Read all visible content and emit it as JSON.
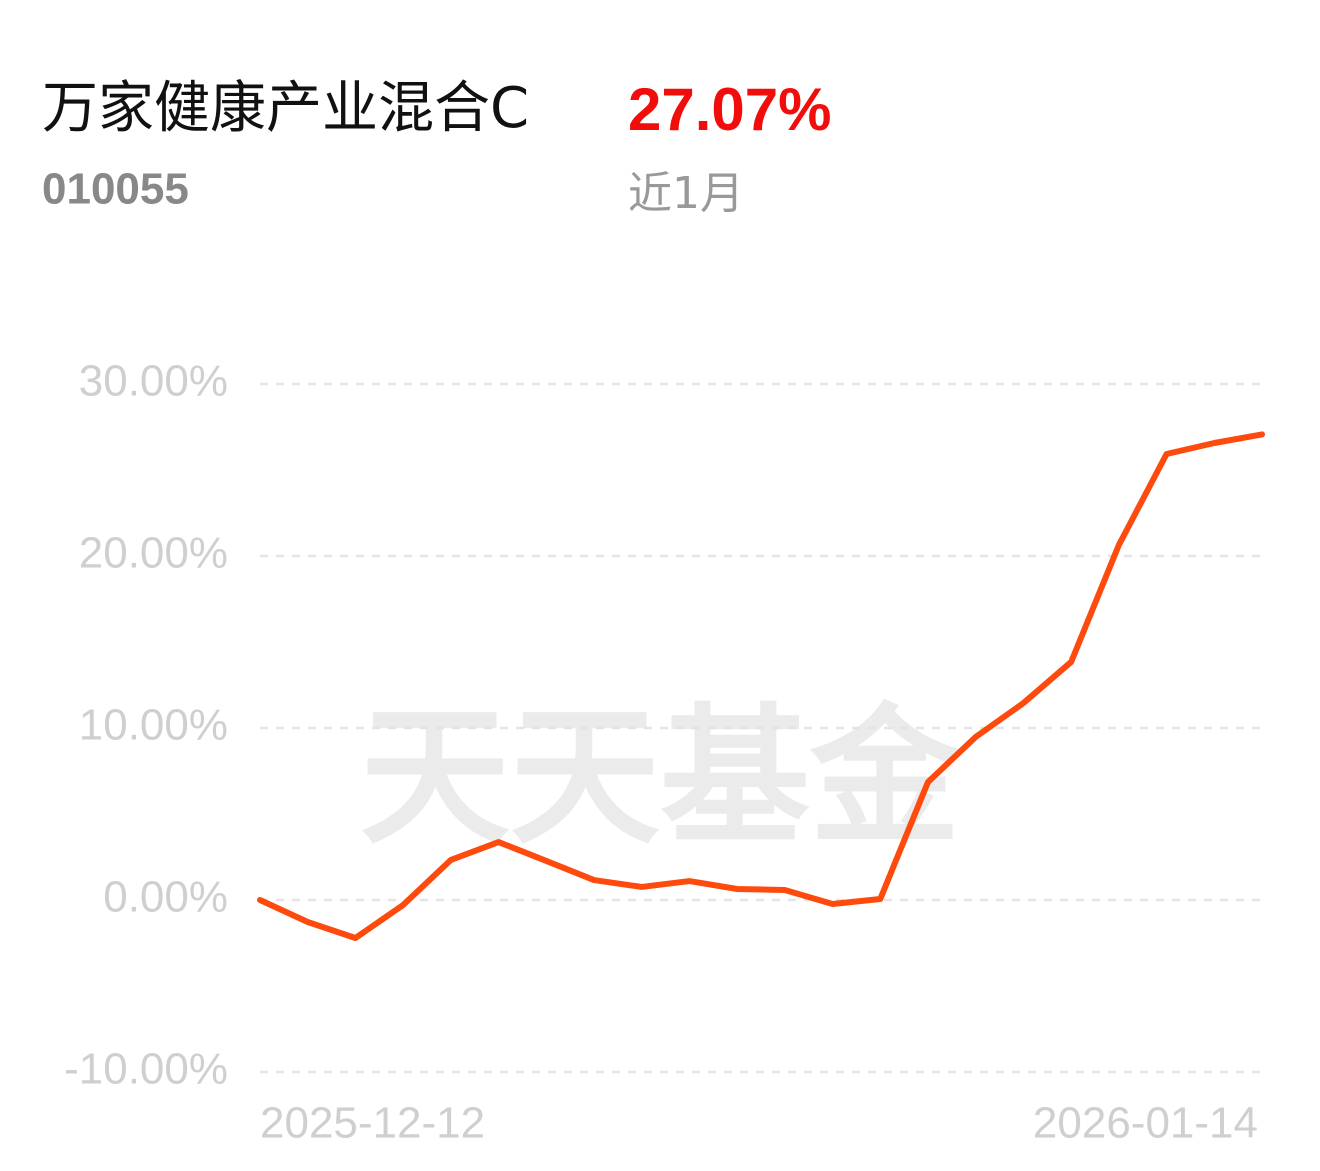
{
  "chart_data": {
    "type": "line",
    "title": "万家健康产业混合C",
    "subtitle": "010055",
    "return_value": "27.07%",
    "period": "近1月",
    "watermark": "天天基金",
    "categories": [
      "2025-12-12",
      null,
      null,
      null,
      null,
      null,
      null,
      null,
      null,
      null,
      null,
      null,
      null,
      null,
      null,
      null,
      null,
      null,
      null,
      null,
      null,
      "2026-01-14"
    ],
    "values": [
      0.0,
      -1.28,
      -2.21,
      -0.29,
      2.33,
      3.37,
      2.27,
      1.16,
      0.76,
      1.1,
      0.64,
      0.58,
      -0.23,
      0.06,
      6.86,
      9.48,
      11.45,
      13.84,
      20.64,
      25.93,
      26.57,
      27.07
    ],
    "color": "#ff4a0e",
    "ylim": [
      -10,
      30
    ],
    "yticks": [
      {
        "value": -10,
        "label": "-10.00%"
      },
      {
        "value": 0,
        "label": "0.00%"
      },
      {
        "value": 10,
        "label": "10.00%"
      },
      {
        "value": 20,
        "label": "20.00%"
      },
      {
        "value": 30,
        "label": "30.00%"
      }
    ],
    "grid": true
  }
}
